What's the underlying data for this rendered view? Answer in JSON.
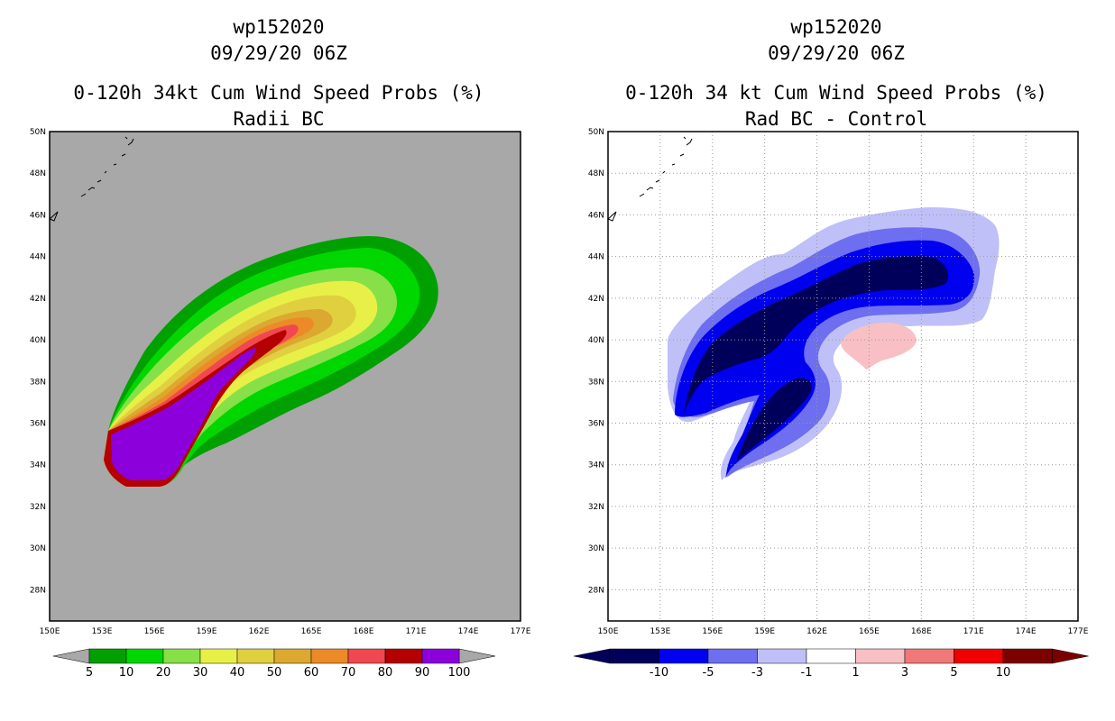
{
  "colors": {
    "map_gray": "#a8a8a8",
    "prob_scale": [
      "#00a000",
      "#00d700",
      "#88e048",
      "#e8f048",
      "#e0d040",
      "#dca830",
      "#ec8a28",
      "#f04850",
      "#b40000",
      "#8c00dc"
    ],
    "diff_scale": [
      "#00005a",
      "#0000f0",
      "#6e6ef0",
      "#c0c0f8",
      "#ffffff",
      "#f8c0c4",
      "#f07878",
      "#f00000",
      "#7c0000"
    ]
  },
  "left_panel": {
    "storm_id": "wp152020",
    "datetime": "09/29/20 06Z",
    "title": "0-120h 34kt Cum Wind Speed Probs (%)",
    "subtitle": "Radii BC",
    "lat_labels": [
      "50N",
      "48N",
      "46N",
      "44N",
      "42N",
      "40N",
      "38N",
      "36N",
      "34N",
      "32N",
      "30N",
      "28N"
    ],
    "lon_labels": [
      "150E",
      "153E",
      "156E",
      "159E",
      "162E",
      "165E",
      "168E",
      "171E",
      "174E",
      "177E"
    ],
    "colorbar_labels": [
      "5",
      "10",
      "20",
      "30",
      "40",
      "50",
      "60",
      "70",
      "80",
      "90",
      "100"
    ]
  },
  "right_panel": {
    "storm_id": "wp152020",
    "datetime": "09/29/20 06Z",
    "title": "0-120h 34 kt Cum Wind Speed Probs (%)",
    "subtitle": "Rad BC - Control",
    "lat_labels": [
      "50N",
      "48N",
      "46N",
      "44N",
      "42N",
      "40N",
      "38N",
      "36N",
      "34N",
      "32N",
      "30N",
      "28N"
    ],
    "lon_labels": [
      "150E",
      "153E",
      "156E",
      "159E",
      "162E",
      "165E",
      "168E",
      "171E",
      "174E",
      "177E"
    ],
    "colorbar_labels": [
      "-10",
      "-5",
      "-3",
      "-1",
      "1",
      "3",
      "5",
      "10"
    ]
  }
}
